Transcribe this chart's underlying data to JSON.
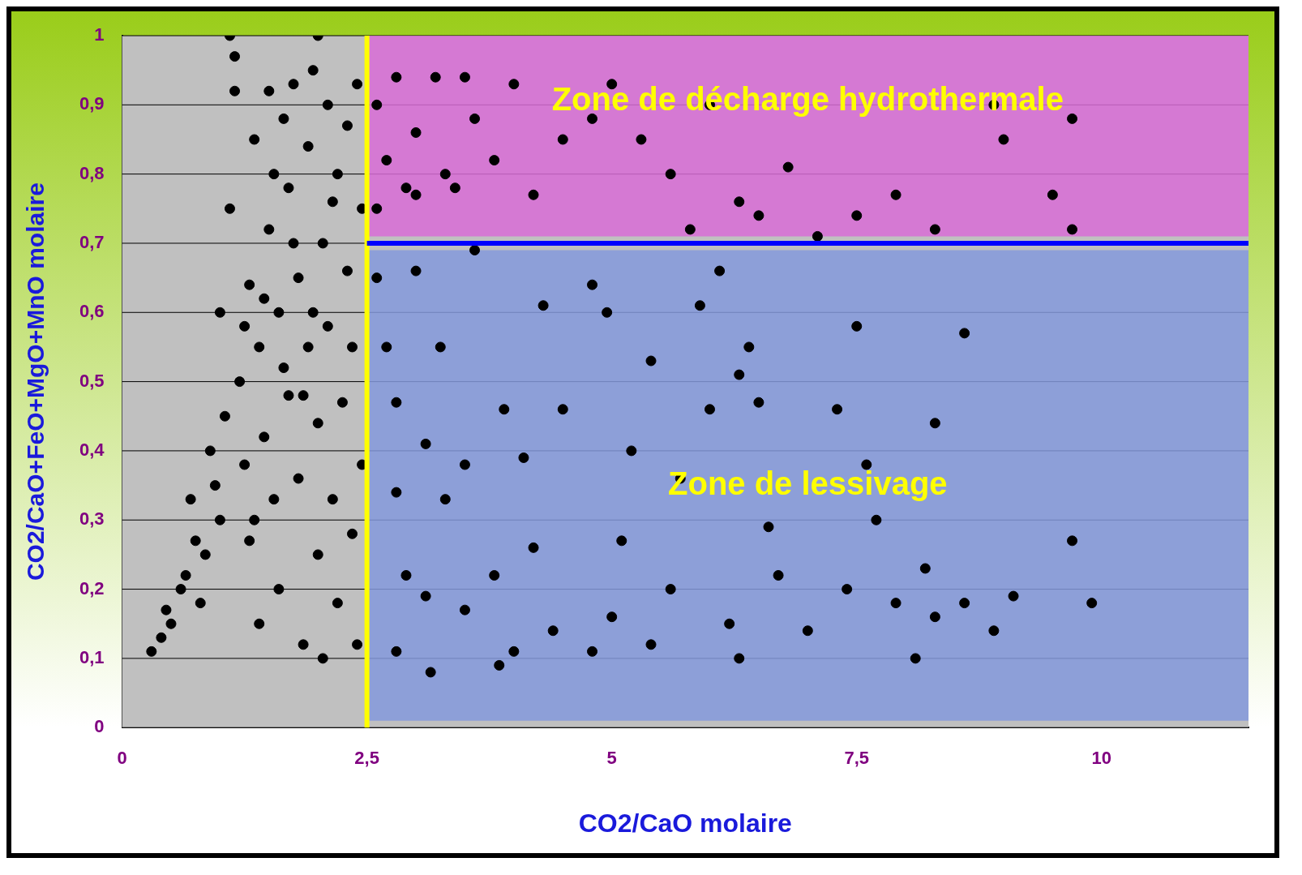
{
  "chart_data": {
    "type": "scatter",
    "xlabel": "CO2/CaO molaire",
    "ylabel": "CO2/CaO+FeO+MgO+MnO molaire",
    "marker": "circle",
    "grid": "y",
    "xlim": [
      0,
      11.5
    ],
    "xticks": [
      0,
      {
        "value": 2.5,
        "label": "2,5"
      },
      5,
      {
        "value": 7.5,
        "label": "7,5"
      },
      10
    ],
    "ylim": [
      0,
      1
    ],
    "yticks": [
      0,
      {
        "value": 0.1,
        "label": "0,1"
      },
      {
        "value": 0.2,
        "label": "0,2"
      },
      {
        "value": 0.3,
        "label": "0,3"
      },
      {
        "value": 0.4,
        "label": "0,4"
      },
      {
        "value": 0.5,
        "label": "0,5"
      },
      {
        "value": 0.6,
        "label": "0,6"
      },
      {
        "value": 0.7,
        "label": "0,7"
      },
      {
        "value": 0.8,
        "label": "0,8"
      },
      {
        "value": 0.9,
        "label": "0,9"
      },
      1
    ],
    "bands": [
      {
        "axis": "y",
        "from": 0.71,
        "to": 1.0,
        "label": "Zone de décharge hydrothermale",
        "color": "#d86cd6"
      },
      {
        "axis": "y",
        "from": 0.01,
        "to": 0.69,
        "label": "Zone de lessivage",
        "color": "#8499dc"
      }
    ],
    "ref_lines": [
      {
        "axis": "x",
        "value": 2.5,
        "color": "#ffff00"
      },
      {
        "axis": "y",
        "value": 0.7,
        "color": "#0000ff"
      }
    ],
    "series": [
      {
        "color": "#000000",
        "x": [
          0.3,
          0.4,
          0.45,
          0.5,
          0.6,
          0.65,
          0.7,
          0.75,
          0.8,
          0.85,
          0.9,
          0.95,
          1.0,
          1.0,
          1.05,
          1.1,
          1.15,
          1.1,
          1.15,
          1.2,
          1.25,
          1.3,
          1.3,
          1.35,
          1.4,
          1.4,
          1.45,
          1.5,
          1.5,
          1.55,
          1.6,
          1.6,
          1.65,
          1.7,
          1.7,
          1.75,
          1.8,
          1.8,
          1.85,
          1.9,
          1.9,
          1.95,
          2.0,
          2.0,
          2.0,
          2.05,
          2.05,
          2.1,
          2.1,
          2.15,
          2.2,
          2.2,
          2.25,
          2.3,
          2.3,
          2.35,
          2.4,
          2.4,
          2.45,
          2.45,
          1.55,
          1.75,
          1.85,
          2.15,
          1.45,
          1.65,
          1.25,
          1.95,
          2.35,
          1.35,
          2.6,
          2.7,
          2.8,
          2.9,
          3.0,
          3.2,
          3.3,
          3.5,
          3.6,
          3.8,
          4.0,
          4.2,
          4.5,
          4.8,
          5.0,
          5.3,
          5.6,
          5.8,
          6.0,
          6.3,
          6.5,
          6.8,
          7.1,
          7.5,
          7.9,
          8.3,
          8.9,
          9.0,
          9.5,
          9.7,
          9.7,
          3.4,
          2.6,
          3.0,
          2.6,
          2.7,
          2.8,
          2.8,
          2.9,
          3.0,
          3.1,
          3.1,
          3.15,
          3.25,
          3.3,
          3.5,
          3.6,
          3.8,
          3.85,
          3.9,
          4.0,
          4.1,
          4.2,
          4.3,
          4.4,
          4.5,
          4.8,
          4.8,
          4.95,
          5.0,
          5.1,
          5.2,
          5.4,
          5.6,
          5.7,
          5.9,
          6.0,
          6.1,
          6.2,
          6.3,
          6.3,
          6.5,
          6.6,
          6.7,
          7.0,
          7.3,
          7.4,
          7.5,
          7.6,
          7.7,
          7.9,
          8.2,
          8.3,
          8.3,
          8.6,
          8.6,
          8.9,
          9.1,
          9.7,
          9.9,
          8.1,
          6.4,
          5.4,
          3.5,
          2.8
        ],
        "values": [
          0.11,
          0.13,
          0.17,
          0.15,
          0.2,
          0.22,
          0.33,
          0.27,
          0.18,
          0.25,
          0.4,
          0.35,
          0.3,
          0.6,
          0.45,
          1.0,
          0.97,
          0.75,
          0.92,
          0.5,
          0.38,
          0.64,
          0.27,
          0.85,
          0.55,
          0.15,
          0.42,
          0.72,
          0.92,
          0.33,
          0.6,
          0.2,
          0.88,
          0.48,
          0.78,
          0.93,
          0.36,
          0.65,
          0.12,
          0.55,
          0.84,
          0.95,
          1.0,
          0.44,
          0.25,
          0.7,
          0.1,
          0.9,
          0.58,
          0.33,
          0.8,
          0.18,
          0.47,
          0.87,
          0.66,
          0.28,
          0.93,
          0.12,
          0.75,
          0.38,
          0.8,
          0.7,
          0.48,
          0.76,
          0.62,
          0.52,
          0.58,
          0.6,
          0.55,
          0.3,
          0.9,
          0.82,
          0.94,
          0.78,
          0.86,
          0.94,
          0.8,
          0.94,
          0.88,
          0.82,
          0.93,
          0.77,
          0.85,
          0.88,
          0.93,
          0.85,
          0.8,
          0.72,
          0.9,
          0.76,
          0.74,
          0.81,
          0.71,
          0.74,
          0.77,
          0.72,
          0.9,
          0.85,
          0.77,
          0.88,
          0.72,
          0.78,
          0.75,
          0.77,
          0.65,
          0.55,
          0.47,
          0.34,
          0.22,
          0.66,
          0.41,
          0.19,
          0.08,
          0.55,
          0.33,
          0.17,
          0.69,
          0.22,
          0.09,
          0.46,
          0.11,
          0.39,
          0.26,
          0.61,
          0.14,
          0.46,
          0.11,
          0.64,
          0.6,
          0.16,
          0.27,
          0.4,
          0.12,
          0.2,
          0.36,
          0.61,
          0.46,
          0.66,
          0.15,
          0.51,
          0.1,
          0.47,
          0.29,
          0.22,
          0.14,
          0.46,
          0.2,
          0.58,
          0.38,
          0.3,
          0.18,
          0.23,
          0.44,
          0.16,
          0.57,
          0.18,
          0.14,
          0.19,
          0.27,
          0.18,
          0.1,
          0.55,
          0.53,
          0.38,
          0.11
        ]
      }
    ]
  }
}
